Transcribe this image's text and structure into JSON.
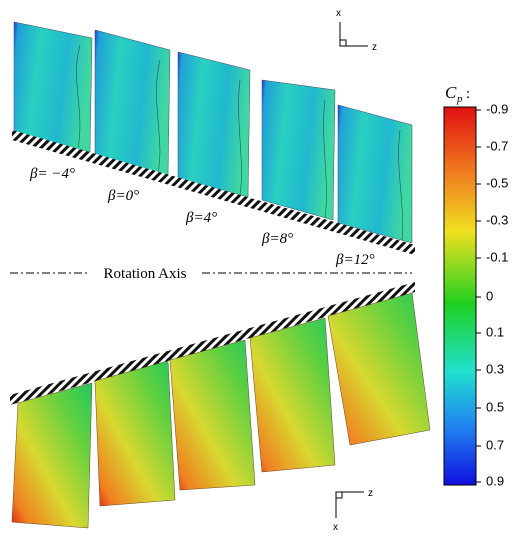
{
  "axes_top": {
    "x": "x",
    "z": "z"
  },
  "axes_bottom": {
    "x": "x",
    "z": "z"
  },
  "beta_labels": [
    "β= −4°",
    "β=0°",
    "β=4°",
    "β=8°",
    "β=12°"
  ],
  "rotation_axis": "Rotation Axis",
  "colorbar": {
    "title": "C",
    "title_sub": "p",
    "title_suffix": ":",
    "ticks": [
      "-0.9",
      "-0.7",
      "-0.5",
      "-0.3",
      "-0.1",
      "0",
      "0.1",
      "0.3",
      "0.5",
      "0.7",
      "0.9"
    ]
  }
}
